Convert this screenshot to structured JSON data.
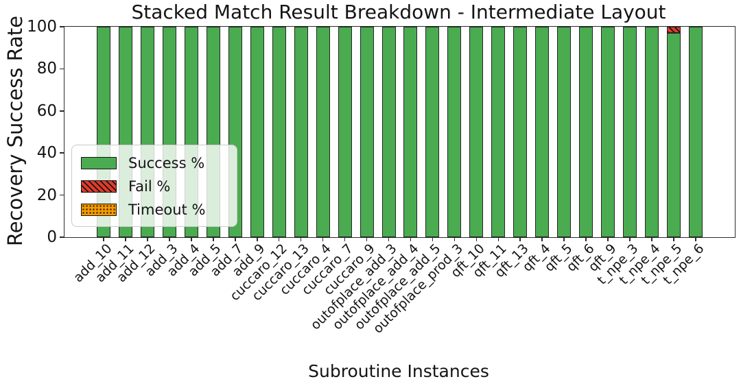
{
  "figure": {
    "title": "Stacked Match Result Breakdown - Intermediate Layout",
    "xlabel": "Subroutine Instances",
    "ylabel": "Recovery Success Rate"
  },
  "chart_data": {
    "type": "bar",
    "stacked": true,
    "title": "Stacked Match Result Breakdown - Intermediate Layout",
    "xlabel": "Subroutine Instances",
    "ylabel": "Recovery Success Rate",
    "ylim": [
      0,
      100
    ],
    "yticks": [
      0,
      20,
      40,
      60,
      80,
      100
    ],
    "grid": false,
    "legend_position": "lower left",
    "categories": [
      "add_10",
      "add_11",
      "add_12",
      "add_3",
      "add_4",
      "add_5",
      "add_7",
      "add_9",
      "cuccaro_12",
      "cuccaro_13",
      "cuccaro_4",
      "cuccaro_7",
      "cuccaro_9",
      "outofplace_add_3",
      "outofplace_add_4",
      "outofplace_add_5",
      "outofplace_prod_3",
      "qft_10",
      "qft_11",
      "qft_13",
      "qft_4",
      "qft_5",
      "qft_6",
      "qft_9",
      "t_npe_3",
      "t_npe_4",
      "t_npe_5",
      "t_npe_6"
    ],
    "series": [
      {
        "name": "Success %",
        "color": "#4aab50",
        "hatch": "none",
        "values": [
          100,
          100,
          100,
          100,
          100,
          100,
          100,
          100,
          100,
          100,
          100,
          100,
          100,
          100,
          100,
          100,
          100,
          100,
          100,
          100,
          100,
          100,
          100,
          100,
          100,
          100,
          97,
          100
        ]
      },
      {
        "name": "Fail %",
        "color": "#e13b2a",
        "hatch": "diagonal",
        "values": [
          0,
          0,
          0,
          0,
          0,
          0,
          0,
          0,
          0,
          0,
          0,
          0,
          0,
          0,
          0,
          0,
          0,
          0,
          0,
          0,
          0,
          0,
          0,
          0,
          0,
          0,
          3,
          0
        ]
      },
      {
        "name": "Timeout %",
        "color": "#f59b00",
        "hatch": "dots",
        "values": [
          0,
          0,
          0,
          0,
          0,
          0,
          0,
          0,
          0,
          0,
          0,
          0,
          0,
          0,
          0,
          0,
          0,
          0,
          0,
          0,
          0,
          0,
          0,
          0,
          0,
          0,
          0,
          0
        ]
      }
    ]
  }
}
